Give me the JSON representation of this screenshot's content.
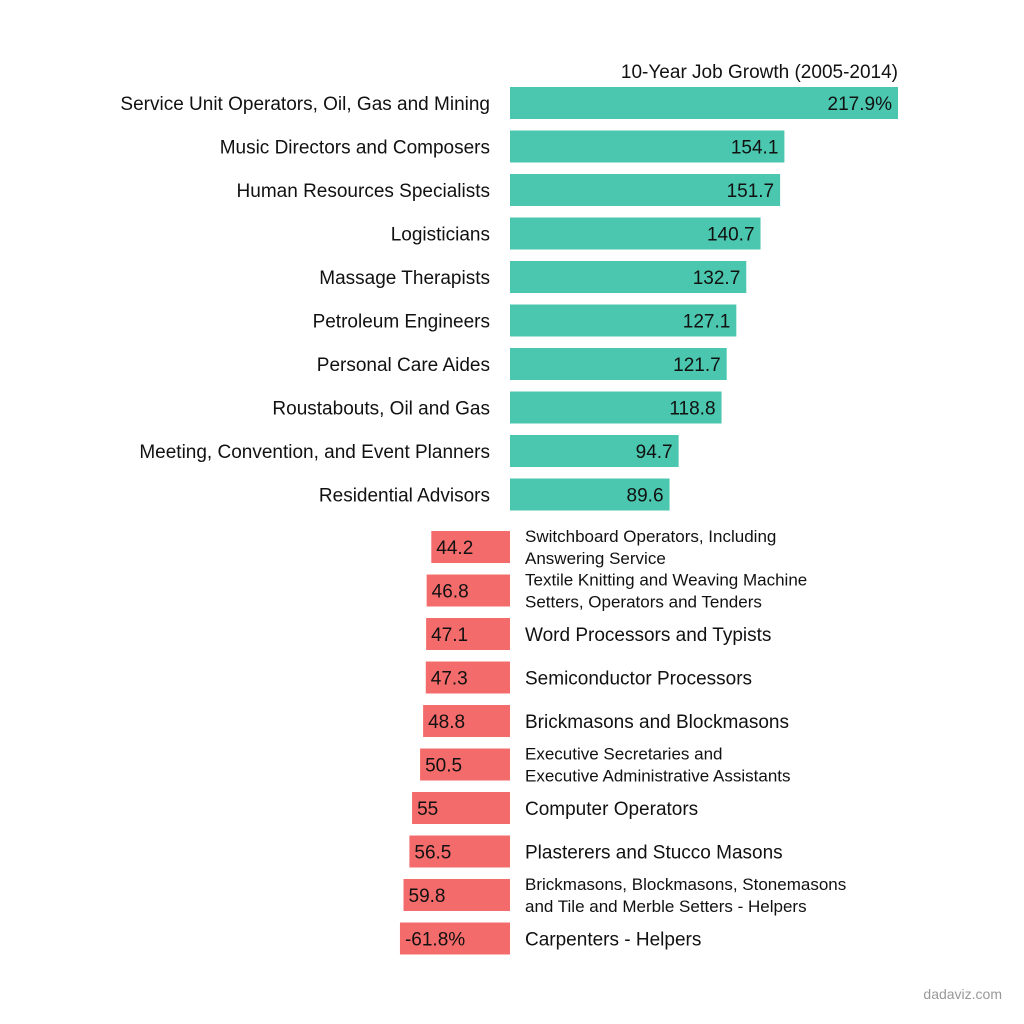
{
  "chart_data": {
    "type": "bar",
    "orientation": "horizontal",
    "title": "10-Year Job Growth (2005-2014)",
    "unit": "%",
    "growth": {
      "color": "#4ac7ae",
      "categories": [
        "Service Unit Operators, Oil, Gas and Mining",
        "Music Directors and Composers",
        "Human Resources Specialists",
        "Logisticians",
        "Massage Therapists",
        "Petroleum Engineers",
        "Personal Care Aides",
        "Roustabouts, Oil and Gas",
        "Meeting, Convention, and Event Planners",
        "Residential Advisors"
      ],
      "values": [
        217.9,
        154.1,
        151.7,
        140.7,
        132.7,
        127.1,
        121.7,
        118.8,
        94.7,
        89.6
      ],
      "labels": [
        "217.9%",
        "154.1",
        "151.7",
        "140.7",
        "132.7",
        "127.1",
        "121.7",
        "118.8",
        "94.7",
        "89.6"
      ]
    },
    "decline": {
      "color": "#f46b6b",
      "categories": [
        [
          "Switchboard Operators, Including",
          "Answering Service"
        ],
        [
          "Textile Knitting and Weaving Machine",
          "Setters, Operators and Tenders"
        ],
        [
          "Word Processors and Typists"
        ],
        [
          "Semiconductor Processors"
        ],
        [
          "Brickmasons and Blockmasons"
        ],
        [
          "Executive Secretaries and",
          "Executive Administrative Assistants"
        ],
        [
          "Computer Operators"
        ],
        [
          "Plasterers and Stucco Masons"
        ],
        [
          "Brickmasons, Blockmasons, Stonemasons",
          "and Tile and Merble Setters - Helpers"
        ],
        [
          "Carpenters - Helpers"
        ]
      ],
      "values": [
        -44.2,
        -46.8,
        -47.1,
        -47.3,
        -48.8,
        -50.5,
        -55,
        -56.5,
        -59.8,
        -61.8
      ],
      "labels": [
        "44.2",
        "46.8",
        "47.1",
        "47.3",
        "48.8",
        "50.5",
        "55",
        "56.5",
        "59.8",
        "-61.8%"
      ]
    }
  },
  "credit": "dadaviz.com"
}
